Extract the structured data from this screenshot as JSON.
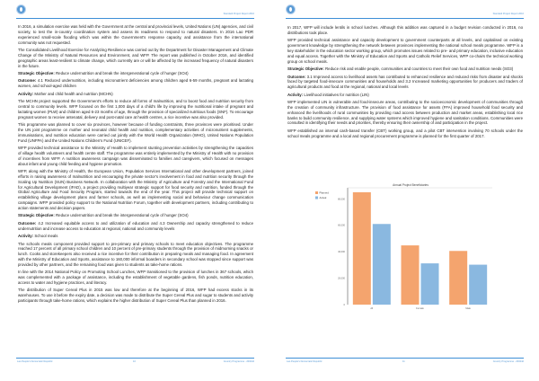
{
  "pages": [
    {
      "header": "Standard Project Report 2016",
      "footer_left": "Lao People's Democratic Republic",
      "page_number": "10",
      "footer_right": "Country Programme - 200242",
      "paragraphs": [
        {
          "label": "",
          "text": "In 2016, a simulation exercise was held with the Government at the central and provincial levels, United Nations (UN) agencies, and civil society, to test the in-country coordination system and assess its readiness to respond to natural disasters. In 2016 Lao PDR experienced small-scale flooding which was within the Government's response capacity, and assistance from the international community was not requested."
        },
        {
          "label": "",
          "text": "The Consolidated Livelihood Exercise for Analyzing Resilience was carried out by the Department for Disaster Management and Climate Change of the Ministry of Natural Resources and Environment, and WFP. The report was published in October 2016, and identified geographic areas least-resilient to climate change, which currently are or will be affected by the increased frequency of natural disasters in the future."
        },
        {
          "label": "Strategic Objective:",
          "text": "Reduce undernutrition and break the intergenerational cycle of hunger (SO4)"
        },
        {
          "label": "Outcome:",
          "text": "4.1 Reduced undernutrition, including micronutrient deficiencies among children aged 6-59 months, pregnant and lactating women, and school-aged children"
        },
        {
          "label": "Activity:",
          "text": "Mother and child health and nutrition (MCHN)"
        },
        {
          "label": "",
          "text": "The MCHN project supported the Government's efforts to reduce all forms of malnutrition, and to boost food and nutrition security from central to community levels. WFP focused on the first 1,000 days of a child's life by improving the nutritional intake of pregnant and lactating women (PLW) and children aged 6-23 months of age, through the provision of specialized nutritious foods (SNF). To encourage pregnant women to receive antenatal, delivery and post-natal care at health centres, a rice incentive was also provided."
        },
        {
          "label": "",
          "text": "This programme was planned to cover six provinces, however because of funding constraints, three provinces were prioritised. Under the UN joint programme on mother and neonatal child health and nutrition, complementary activities of micronutrient supplements, immunisations, and nutrition education were carried out jointly with the World Health Organization (WHO), United Nations Population Fund (UNFPA) and the United Nations Children's Fund (UNICEF)."
        },
        {
          "label": "",
          "text": "WFP provided technical assistance to the Ministry of Health to implement stunting prevention activities by strengthening the capacities of village health volunteers and health centre staff. The programme was entirely implemented by the Ministry of Health with no provision of incentives from WFP. A nutrition awareness campaign was disseminated to families and caregivers, which focused on messages about infant and young child feeding and hygiene promotion."
        },
        {
          "label": "",
          "text": "WFP, along with the Ministry of Health, the European Union, Population Services International and other development partners, joined efforts in raising awareness of malnutrition and encouraging the private sector's involvement in food and nutrition security through the Scaling Up Nutrition (SUN) Business Network. In collaboration with the Ministry of Agriculture and Forestry and the International Fund for Agricultural Development (IFAD), a project providing multiyear strategic support for food security and nutrition, funded through the Global Agriculture and Food Security Program, started towards the end of the year. This project will provide technical support on establishing village development plans and farmer schools, as well as implementing social and behaviour change communication campaigns. WFP provided policy support to the National Nutrition Forum, together with development partners, including contributing to action statements and decision papers."
        },
        {
          "label": "Strategic Objective:",
          "text": "Reduce undernutrition and break the intergenerational cycle of hunger (SO4)"
        },
        {
          "label": "Outcome:",
          "text": "4.2 Increased equitable access to and utilization of education and 4.3 Ownership and capacity strengthened to reduce undernutrition and increase access to education at regional, national and community levels"
        },
        {
          "label": "Activity:",
          "text": "School meals"
        },
        {
          "label": "",
          "text": "The schools meals component provided support to pre-primary and primary schools to meet education objectives. The programme reached 17 percent of all primary school children and 10 percent of pre-primary students through the provision of midmorning snacks or lunch. Cooks and storekeepers also received a rice incentive for their contribution in preparing meals and managing food. In agreement with the Ministry of Education and Sports, assistance to 160,000 informal boarders in secondary school was stopped since support was provided by other partners, and the remaining food was given to students as take-home rations."
        },
        {
          "label": "",
          "text": "In line with the 2014 National Policy on Promoting School Lunches, WFP transitioned to the provision of lunches in 367 schools, which was complemented with a package of assistance, including the establishment of vegetable gardens, fish ponds, nutrition education, access to water and hygiene practices, and literacy."
        },
        {
          "label": "",
          "text": "The distribution of Super Cereal Plus in 2015 was low and therefore at the beginning of 2016, WFP had excess stocks in its warehouses. To use it before the expiry date, a decision was made to distribute the Super Cereal Plus and sugar to students and activity participants through take-home rations, which explains the higher distribution of Super Cereal Plus than planned in 2016."
        }
      ]
    },
    {
      "header": "Standard Project Report 2016",
      "footer_left": "Lao People's Democratic Republic",
      "page_number": "11",
      "footer_right": "Country Programme - 200242",
      "paragraphs": [
        {
          "label": "",
          "text": "In 2017, WFP will include lentils in school lunches. Although this addition was captured in a budget revision conducted in 2016, no distributions took place."
        },
        {
          "label": "",
          "text": "WFP provided technical assistance and capacity development to government counterparts at all levels, and capitalised on existing government knowledge by strengthening the network between provinces implementing the national school meals programme. WFP is a key stakeholder in the education sector working group, which promotes issues related to pre- and primary education, inclusive education and equal access. Together with the Ministry of Education and Sports and Catholic Relief Services, WFP co-chairs the technical working group on school meals."
        },
        {
          "label": "Strategic Objective:",
          "text": "Reduce risk and enable people, communities and countries to meet their own food and nutrition needs (SO3)"
        },
        {
          "label": "Outcome:",
          "text": "3.1 Improved access to livelihood assets has contributed to enhanced resilience and reduced risks from disaster and shocks faced by targeted food-insecure communities and households and 3.2 Increased marketing opportunities for producers and traders of agricultural products and food at the regional, national and local levels"
        },
        {
          "label": "Activity:",
          "text": "Livelihood initiatives for nutrition (LIN)"
        },
        {
          "label": "",
          "text": "WFP implemented LIN in vulnerable and food-insecure areas, contributing to the socioeconomic development of communities through the creation of community infrastructure. The provision of food assistance for assets (FFA) improved household food security and enhanced the livelihoods of rural communities by providing road access between production and market areas, establishing local rice banks to build community resilience, and supplying water systems which improved hygiene and sanitation conditions. Communities were consulted in identifying their needs and priorities, thereby ensuring their ownership of and participation in the project."
        },
        {
          "label": "",
          "text": "WFP established an internal cash-based transfer (CBT) working group, and a pilot CBT intervention involving 70 schools under the school meals programme and a local and regional procurement programme is planned for the first quarter of 2017."
        }
      ]
    }
  ],
  "chart_data": {
    "type": "bar",
    "title": "Annual Project Beneficiaries",
    "categories": [
      "All",
      "Female",
      "Male"
    ],
    "series": [
      {
        "name": "Planned",
        "values": [
          85000,
          44800,
          40600
        ],
        "color": "#f4a46e"
      },
      {
        "name": "Actual",
        "values": [
          61000,
          31200,
          30200
        ],
        "color": "#8ab8e0"
      }
    ],
    "yticks": [
      "0",
      "20,000",
      "40,000",
      "60,000",
      "80,000"
    ],
    "ytick_values": [
      0,
      20000,
      40000,
      60000,
      80000
    ],
    "ylim": [
      0,
      87000
    ],
    "legend": "top-left",
    "grid": false
  },
  "colors": {
    "accent": "#3d8fd6",
    "text": "#222222"
  }
}
